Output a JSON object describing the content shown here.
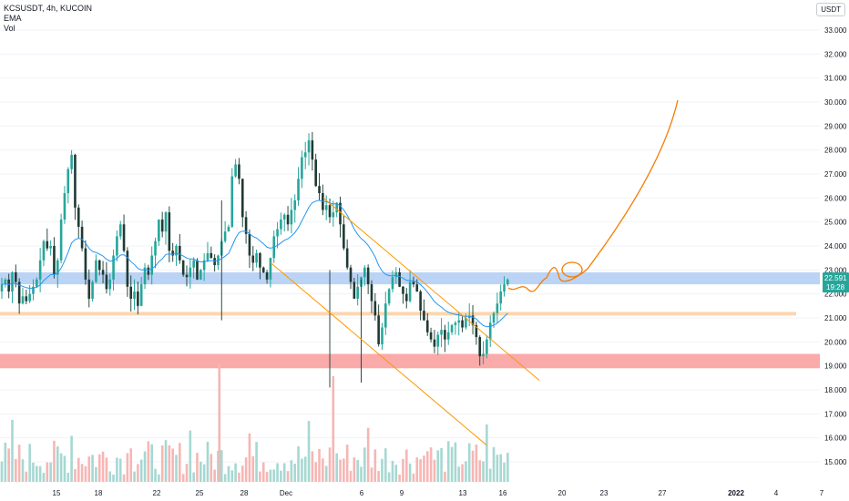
{
  "legend": {
    "symbol_line": "KCSUSDT, 4h, KUCOIN",
    "ema_label": "EMA",
    "vol_label": "Vol"
  },
  "price_scale": {
    "currency": "USDT",
    "ticks": [
      "33.000",
      "32.000",
      "31.000",
      "30.000",
      "29.000",
      "28.000",
      "27.000",
      "26.000",
      "25.000",
      "24.000",
      "23.000",
      "22.000",
      "21.000",
      "20.000",
      "19.000",
      "18.000",
      "17.000",
      "16.000",
      "15.000"
    ],
    "current_price": "22.591",
    "countdown": "19:28"
  },
  "time_scale": {
    "ticks": [
      "15",
      "18",
      "22",
      "25",
      "28",
      "Dec",
      "6",
      "9",
      "13",
      "16",
      "20",
      "23",
      "27",
      "2022",
      "4",
      "7"
    ]
  },
  "colors": {
    "up": "#26a69a",
    "down": "#ef5350",
    "candle_body_dark": "#1f3a34",
    "ema": "#2196f3",
    "channel": "#ff9800",
    "projection": "#f57c00",
    "zone_blue": "#bbd3f5",
    "zone_orange": "#fcd6b0",
    "zone_red": "#f9aaa9",
    "price_label_bg": "#26a69a"
  },
  "chart_data": {
    "type": "candlestick",
    "timeframe": "4h",
    "axis_y_range": [
      14.5,
      33.6
    ],
    "candles_close_trace": [
      22.4,
      22.6,
      22.1,
      22.9,
      22.5,
      21.6,
      21.9,
      21.7,
      22.0,
      22.3,
      22.6,
      23.4,
      24.2,
      23.9,
      24.0,
      22.8,
      23.4,
      25.1,
      26.2,
      27.2,
      27.8,
      25.6,
      24.8,
      23.9,
      22.6,
      21.8,
      22.5,
      23.4,
      23.0,
      22.8,
      22.2,
      22.6,
      23.6,
      24.4,
      24.9,
      23.8,
      22.3,
      21.8,
      22.1,
      21.5,
      22.4,
      23.1,
      22.8,
      23.6,
      24.2,
      25.1,
      24.6,
      25.4,
      23.8,
      23.6,
      24.0,
      23.4,
      22.8,
      22.7,
      23.1,
      23.4,
      22.6,
      23.0,
      23.4,
      23.7,
      23.5,
      23.2,
      23.6,
      24.2,
      24.6,
      24.8,
      26.9,
      27.4,
      26.8,
      25.2,
      24.5,
      23.6,
      23.3,
      23.7,
      23.1,
      22.9,
      22.6,
      23.5,
      24.4,
      24.7,
      25.1,
      25.3,
      24.9,
      25.5,
      25.9,
      26.8,
      27.7,
      27.9,
      28.4,
      27.6,
      26.5,
      26.2,
      25.5,
      25.7,
      25.2,
      25.4,
      25.8,
      24.9,
      23.9,
      23.1,
      22.5,
      21.8,
      22.3,
      22.7,
      23.1,
      22.4,
      21.7,
      21.1,
      19.9,
      20.6,
      21.6,
      22.2,
      22.7,
      22.9,
      22.3,
      22.0,
      21.7,
      22.5,
      22.4,
      22.1,
      21.3,
      20.9,
      20.4,
      20.1,
      19.8,
      20.3,
      20.5,
      20.1,
      20.4,
      20.7,
      20.8,
      20.9,
      20.6,
      21.0,
      21.1,
      20.7,
      20.2,
      19.4,
      19.5,
      20.1,
      20.8,
      21.2,
      21.6,
      22.1,
      22.4,
      22.6
    ],
    "volume_peaks": [
      "Nov 25",
      "Dec 4"
    ],
    "price_zones": [
      {
        "name": "resistance",
        "from": 22.4,
        "to": 22.9
      },
      {
        "name": "support-line",
        "from": 21.1,
        "to": 21.25
      },
      {
        "name": "support",
        "from": 18.9,
        "to": 19.5
      }
    ],
    "channel": {
      "upper": {
        "from": {
          "x": "Dec 3",
          "y": 26.0
        },
        "to": {
          "x": "Dec 18",
          "y": 18.4
        }
      },
      "lower": {
        "from": {
          "x": "Nov 27",
          "y": 23.3
        },
        "to": {
          "x": "Dec 15",
          "y": 15.7
        }
      }
    },
    "projection": [
      "Dec 16: 22.6",
      "Dec 20: 23.0",
      "Dec 21: 22.7",
      "Dec 27: 27.0",
      "Dec 28: 30.0"
    ],
    "last_price": 22.591
  }
}
